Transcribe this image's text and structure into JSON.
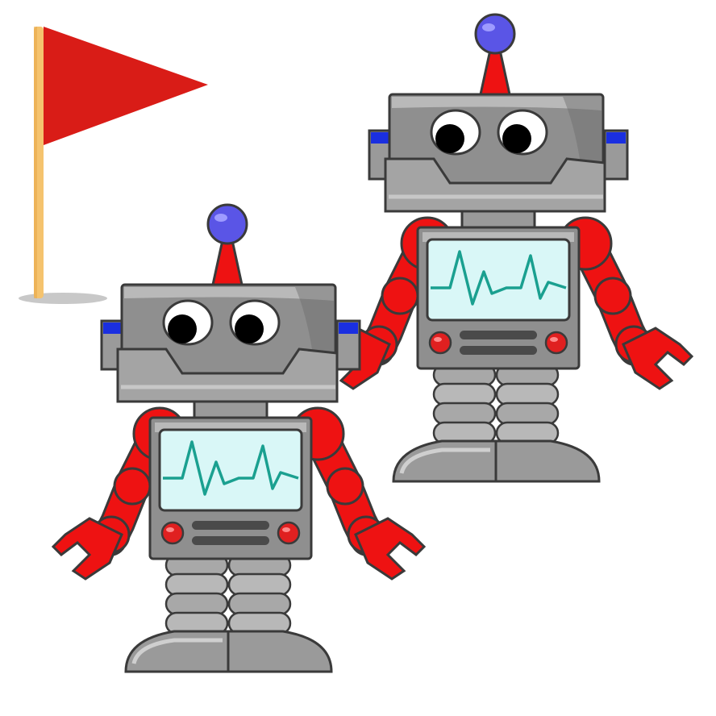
{
  "scene": {
    "background": "#ffffff",
    "objects": [
      {
        "type": "goal-flag",
        "label": ""
      },
      {
        "type": "robot",
        "label": ""
      },
      {
        "type": "robot",
        "label": ""
      }
    ]
  },
  "palette": {
    "flag": "#d91c17",
    "pole": "#f5c36e",
    "metal": "#8f8f8f",
    "metal_light": "#b9b9b9",
    "metal_dark": "#6d6d6d",
    "limb": "#ee1212",
    "antenna_ball": "#5a55e6",
    "screen": "#d9f7f7",
    "pulse": "#1aa090",
    "button": "#e02020",
    "ear": "#1a2fe0",
    "outline": "#3a3a3a"
  },
  "icons": {
    "flag": "flag-icon",
    "robot": "robot-icon"
  }
}
